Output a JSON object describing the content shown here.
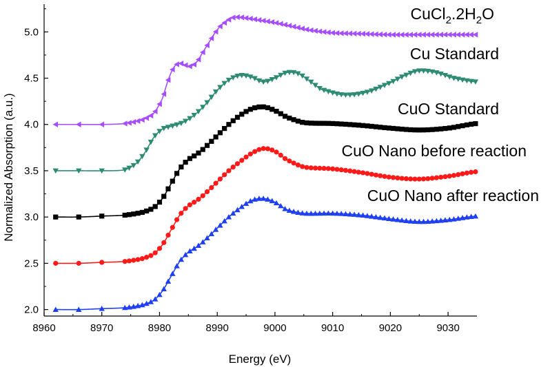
{
  "chart_data": {
    "type": "line",
    "title": "",
    "xlabel": "Energy (eV)",
    "ylabel": "Normalized Absorption (a.u.)",
    "xlim": [
      8960,
      9035
    ],
    "ylim": [
      1.93,
      5.3
    ],
    "xticks": [
      8960,
      8970,
      8980,
      8990,
      9000,
      9010,
      9020,
      9030
    ],
    "yticks": [
      2.0,
      2.5,
      3.0,
      3.5,
      4.0,
      4.5,
      5.0
    ],
    "grid": false,
    "series": [
      {
        "name": "CuCl2.2H2O",
        "label_main": "CuCl",
        "label_sub1": "2",
        "label_mid": ".2H",
        "label_sub2": "2",
        "label_end": "O",
        "color": "#a64dff",
        "marker": "triangle-left",
        "offset": 4.0,
        "points": [
          [
            8962,
            0.0
          ],
          [
            8966,
            0.0
          ],
          [
            8970,
            0.0
          ],
          [
            8974,
            0.01
          ],
          [
            8977,
            0.05
          ],
          [
            8979,
            0.12
          ],
          [
            8980.5,
            0.28
          ],
          [
            8981.5,
            0.48
          ],
          [
            8982.5,
            0.62
          ],
          [
            8983.5,
            0.66
          ],
          [
            8984.5,
            0.64
          ],
          [
            8985.5,
            0.63
          ],
          [
            8986.5,
            0.68
          ],
          [
            8987.5,
            0.78
          ],
          [
            8988.5,
            0.88
          ],
          [
            8989.5,
            0.98
          ],
          [
            8990.5,
            1.06
          ],
          [
            8991.5,
            1.11
          ],
          [
            8992.5,
            1.15
          ],
          [
            8993.5,
            1.16
          ],
          [
            8995,
            1.15
          ],
          [
            8997,
            1.13
          ],
          [
            9000,
            1.1
          ],
          [
            9003,
            1.06
          ],
          [
            9006,
            1.02
          ],
          [
            9010,
            0.99
          ],
          [
            9015,
            0.98
          ],
          [
            9020,
            0.97
          ],
          [
            9025,
            0.97
          ],
          [
            9030,
            0.97
          ],
          [
            9035,
            0.97
          ]
        ]
      },
      {
        "name": "Cu Standard",
        "label_main": "Cu Standard",
        "color": "#2e8b73",
        "marker": "triangle-down",
        "offset": 3.5,
        "points": [
          [
            8962,
            0.0
          ],
          [
            8966,
            0.0
          ],
          [
            8970,
            0.0
          ],
          [
            8974,
            0.01
          ],
          [
            8976,
            0.08
          ],
          [
            8977.5,
            0.2
          ],
          [
            8979,
            0.36
          ],
          [
            8980.5,
            0.45
          ],
          [
            8982,
            0.48
          ],
          [
            8984,
            0.52
          ],
          [
            8986,
            0.6
          ],
          [
            8988,
            0.72
          ],
          [
            8990,
            0.87
          ],
          [
            8992,
            0.98
          ],
          [
            8994,
            1.03
          ],
          [
            8996,
            1.01
          ],
          [
            8998,
            0.96
          ],
          [
            9000,
            1.0
          ],
          [
            9002,
            1.06
          ],
          [
            9004,
            1.05
          ],
          [
            9006,
            0.97
          ],
          [
            9008,
            0.88
          ],
          [
            9012,
            0.82
          ],
          [
            9016,
            0.85
          ],
          [
            9020,
            0.95
          ],
          [
            9023,
            1.04
          ],
          [
            9025,
            1.08
          ],
          [
            9028,
            1.06
          ],
          [
            9031,
            1.0
          ],
          [
            9035,
            0.96
          ]
        ]
      },
      {
        "name": "CuO Standard",
        "label_main": "CuO Standard",
        "color": "#000000",
        "marker": "square",
        "offset": 3.0,
        "points": [
          [
            8962,
            0.0
          ],
          [
            8966,
            0.0
          ],
          [
            8970,
            0.01
          ],
          [
            8974,
            0.02
          ],
          [
            8977,
            0.05
          ],
          [
            8979,
            0.1
          ],
          [
            8980.5,
            0.2
          ],
          [
            8982,
            0.36
          ],
          [
            8983.5,
            0.52
          ],
          [
            8985,
            0.62
          ],
          [
            8986.5,
            0.68
          ],
          [
            8988,
            0.76
          ],
          [
            8990,
            0.88
          ],
          [
            8992,
            1.0
          ],
          [
            8994,
            1.1
          ],
          [
            8996,
            1.17
          ],
          [
            8998,
            1.19
          ],
          [
            9000,
            1.15
          ],
          [
            9002,
            1.08
          ],
          [
            9005,
            1.02
          ],
          [
            9010,
            1.01
          ],
          [
            9015,
            0.99
          ],
          [
            9020,
            0.96
          ],
          [
            9025,
            0.94
          ],
          [
            9030,
            0.96
          ],
          [
            9035,
            1.01
          ]
        ]
      },
      {
        "name": "CuO Nano before reaction",
        "label_main": "CuO Nano before reaction",
        "color": "#ff1a1a",
        "marker": "circle",
        "offset": 2.5,
        "points": [
          [
            8962,
            0.0
          ],
          [
            8966,
            0.0
          ],
          [
            8970,
            0.01
          ],
          [
            8974,
            0.02
          ],
          [
            8977,
            0.05
          ],
          [
            8979,
            0.1
          ],
          [
            8980.5,
            0.2
          ],
          [
            8982,
            0.36
          ],
          [
            8983.5,
            0.52
          ],
          [
            8985,
            0.62
          ],
          [
            8986.5,
            0.68
          ],
          [
            8988,
            0.76
          ],
          [
            8990,
            0.88
          ],
          [
            8992,
            1.0
          ],
          [
            8994,
            1.1
          ],
          [
            8996,
            1.19
          ],
          [
            8998,
            1.24
          ],
          [
            9000,
            1.21
          ],
          [
            9002,
            1.12
          ],
          [
            9005,
            1.04
          ],
          [
            9010,
            1.02
          ],
          [
            9015,
            0.98
          ],
          [
            9020,
            0.93
          ],
          [
            9025,
            0.91
          ],
          [
            9030,
            0.94
          ],
          [
            9035,
            0.99
          ]
        ]
      },
      {
        "name": "CuO Nano after reaction",
        "label_main": "CuO Nano after reaction",
        "color": "#1f3ff2",
        "marker": "triangle-up",
        "offset": 2.0,
        "points": [
          [
            8962,
            0.0
          ],
          [
            8966,
            0.0
          ],
          [
            8970,
            0.01
          ],
          [
            8974,
            0.02
          ],
          [
            8977,
            0.05
          ],
          [
            8979,
            0.1
          ],
          [
            8980.5,
            0.2
          ],
          [
            8982,
            0.36
          ],
          [
            8983.5,
            0.52
          ],
          [
            8985,
            0.62
          ],
          [
            8986.5,
            0.68
          ],
          [
            8988,
            0.76
          ],
          [
            8990,
            0.88
          ],
          [
            8992,
            1.0
          ],
          [
            8994,
            1.1
          ],
          [
            8996,
            1.18
          ],
          [
            8998,
            1.2
          ],
          [
            9000,
            1.16
          ],
          [
            9002,
            1.08
          ],
          [
            9005,
            1.04
          ],
          [
            9010,
            1.04
          ],
          [
            9015,
            1.02
          ],
          [
            9020,
            0.98
          ],
          [
            9025,
            0.95
          ],
          [
            9030,
            0.97
          ],
          [
            9035,
            1.01
          ]
        ]
      }
    ]
  }
}
